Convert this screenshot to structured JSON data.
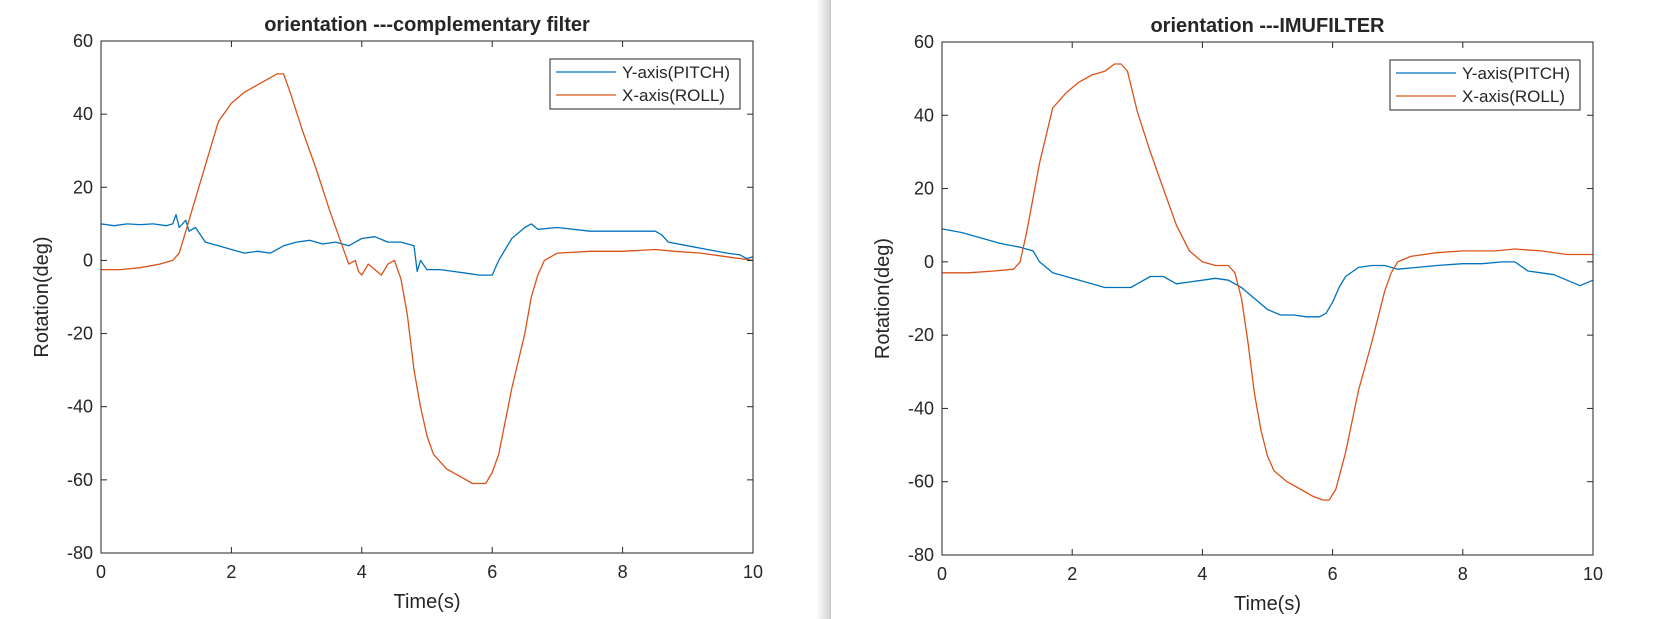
{
  "chart_data": [
    {
      "type": "line",
      "title": "orientation ---complementary filter",
      "xlabel": "Time(s)",
      "ylabel": "Rotation(deg)",
      "xlim": [
        0,
        10
      ],
      "ylim": [
        -80,
        60
      ],
      "xticks": [
        "0",
        "2",
        "4",
        "6",
        "8",
        "10"
      ],
      "yticks": [
        "60",
        "40",
        "20",
        "0",
        "-20",
        "-40",
        "-60",
        "-80"
      ],
      "legend_position": "top-right",
      "grid": false,
      "series": [
        {
          "name": "Y-axis(PITCH)",
          "color": "#0072bd",
          "x": [
            0,
            0.2,
            0.4,
            0.6,
            0.8,
            1.0,
            1.1,
            1.15,
            1.2,
            1.3,
            1.35,
            1.45,
            1.6,
            1.8,
            2.0,
            2.2,
            2.4,
            2.6,
            2.8,
            3.0,
            3.2,
            3.4,
            3.6,
            3.8,
            3.9,
            4.0,
            4.2,
            4.4,
            4.6,
            4.8,
            4.85,
            4.9,
            5.0,
            5.2,
            5.4,
            5.6,
            5.8,
            6.0,
            6.1,
            6.3,
            6.5,
            6.6,
            6.7,
            7.0,
            7.5,
            8.0,
            8.5,
            8.6,
            8.7,
            9.0,
            9.3,
            9.6,
            9.8,
            9.9,
            10.0
          ],
          "y": [
            10,
            9.5,
            10,
            9.8,
            10,
            9.5,
            10,
            12.5,
            9,
            11,
            8,
            9,
            5,
            4,
            3,
            2,
            2.5,
            2,
            4,
            5,
            5.5,
            4.5,
            5,
            4,
            5,
            6,
            6.5,
            5,
            5,
            4,
            -3,
            0,
            -2.5,
            -2.5,
            -3,
            -3.5,
            -4,
            -4,
            0,
            6,
            9,
            10,
            8.5,
            9,
            8,
            8,
            8,
            7,
            5,
            4,
            3,
            2,
            1.5,
            0.5,
            1
          ]
        },
        {
          "name": "X-axis(ROLL)",
          "color": "#d95319",
          "x": [
            0,
            0.3,
            0.6,
            0.9,
            1.1,
            1.2,
            1.3,
            1.5,
            1.8,
            2.0,
            2.2,
            2.4,
            2.6,
            2.7,
            2.8,
            2.9,
            3.1,
            3.3,
            3.5,
            3.7,
            3.8,
            3.9,
            3.95,
            4.0,
            4.1,
            4.3,
            4.4,
            4.5,
            4.6,
            4.7,
            4.8,
            4.9,
            5.0,
            5.1,
            5.3,
            5.5,
            5.7,
            5.8,
            5.9,
            6.0,
            6.1,
            6.3,
            6.5,
            6.6,
            6.7,
            6.8,
            7.0,
            7.5,
            8.0,
            8.5,
            8.8,
            9.2,
            9.6,
            10.0
          ],
          "y": [
            -2.5,
            -2.5,
            -2,
            -1,
            0,
            2,
            8,
            20,
            38,
            43,
            46,
            48,
            50,
            51,
            51,
            46,
            35,
            25,
            14,
            4,
            -1,
            0,
            -3,
            -4,
            -1,
            -4,
            -1,
            0,
            -5,
            -15,
            -30,
            -40,
            -48,
            -53,
            -57,
            -59,
            -61,
            -61,
            -61,
            -58,
            -53,
            -35,
            -20,
            -10,
            -4,
            0,
            2,
            2.5,
            2.5,
            3,
            2.5,
            2,
            1,
            0
          ]
        }
      ]
    },
    {
      "type": "line",
      "title": "orientation ---IMUFILTER",
      "xlabel": "Time(s)",
      "ylabel": "Rotation(deg)",
      "xlim": [
        0,
        10
      ],
      "ylim": [
        -80,
        60
      ],
      "xticks": [
        "0",
        "2",
        "4",
        "6",
        "8",
        "10"
      ],
      "yticks": [
        "60",
        "40",
        "20",
        "0",
        "-20",
        "-40",
        "-60",
        "-80"
      ],
      "legend_position": "top-right",
      "grid": false,
      "series": [
        {
          "name": "Y-axis(PITCH)",
          "color": "#0072bd",
          "x": [
            0,
            0.3,
            0.6,
            0.9,
            1.2,
            1.4,
            1.5,
            1.7,
            2.0,
            2.3,
            2.5,
            2.7,
            2.9,
            3.0,
            3.2,
            3.4,
            3.6,
            3.8,
            4.0,
            4.2,
            4.4,
            4.6,
            4.8,
            5.0,
            5.2,
            5.4,
            5.6,
            5.8,
            5.9,
            6.0,
            6.1,
            6.2,
            6.4,
            6.6,
            6.8,
            7.0,
            7.3,
            7.6,
            8.0,
            8.3,
            8.6,
            8.8,
            9.0,
            9.2,
            9.4,
            9.6,
            9.8,
            10.0
          ],
          "y": [
            9,
            8,
            6.5,
            5,
            4,
            3,
            0,
            -3,
            -4.5,
            -6,
            -7,
            -7,
            -7,
            -6,
            -4,
            -4,
            -6,
            -5.5,
            -5,
            -4.5,
            -5,
            -7,
            -10,
            -13,
            -14.5,
            -14.5,
            -15,
            -15,
            -14,
            -11,
            -7,
            -4,
            -1.5,
            -1,
            -1,
            -2,
            -1.5,
            -1,
            -0.5,
            -0.5,
            0,
            0,
            -2.5,
            -3,
            -3.5,
            -5,
            -6.5,
            -5
          ]
        },
        {
          "name": "X-axis(ROLL)",
          "color": "#d95319",
          "x": [
            0,
            0.4,
            0.8,
            1.1,
            1.2,
            1.3,
            1.5,
            1.7,
            1.9,
            2.1,
            2.3,
            2.5,
            2.65,
            2.75,
            2.85,
            3.0,
            3.2,
            3.4,
            3.6,
            3.8,
            4.0,
            4.2,
            4.4,
            4.5,
            4.6,
            4.7,
            4.8,
            4.9,
            5.0,
            5.1,
            5.3,
            5.5,
            5.7,
            5.85,
            5.95,
            6.05,
            6.2,
            6.4,
            6.6,
            6.8,
            6.9,
            7.0,
            7.2,
            7.6,
            8.0,
            8.5,
            8.8,
            9.2,
            9.6,
            10.0
          ],
          "y": [
            -3,
            -3,
            -2.5,
            -2,
            0,
            8,
            27,
            42,
            46,
            49,
            51,
            52,
            54,
            54,
            52,
            41,
            30,
            20,
            10,
            3,
            0,
            -1,
            -1,
            -3,
            -10,
            -22,
            -36,
            -46,
            -53,
            -57,
            -60,
            -62,
            -64,
            -65,
            -65,
            -62,
            -52,
            -35,
            -22,
            -8,
            -3,
            0,
            1.5,
            2.5,
            3,
            3,
            3.5,
            3,
            2,
            2
          ]
        }
      ]
    }
  ]
}
